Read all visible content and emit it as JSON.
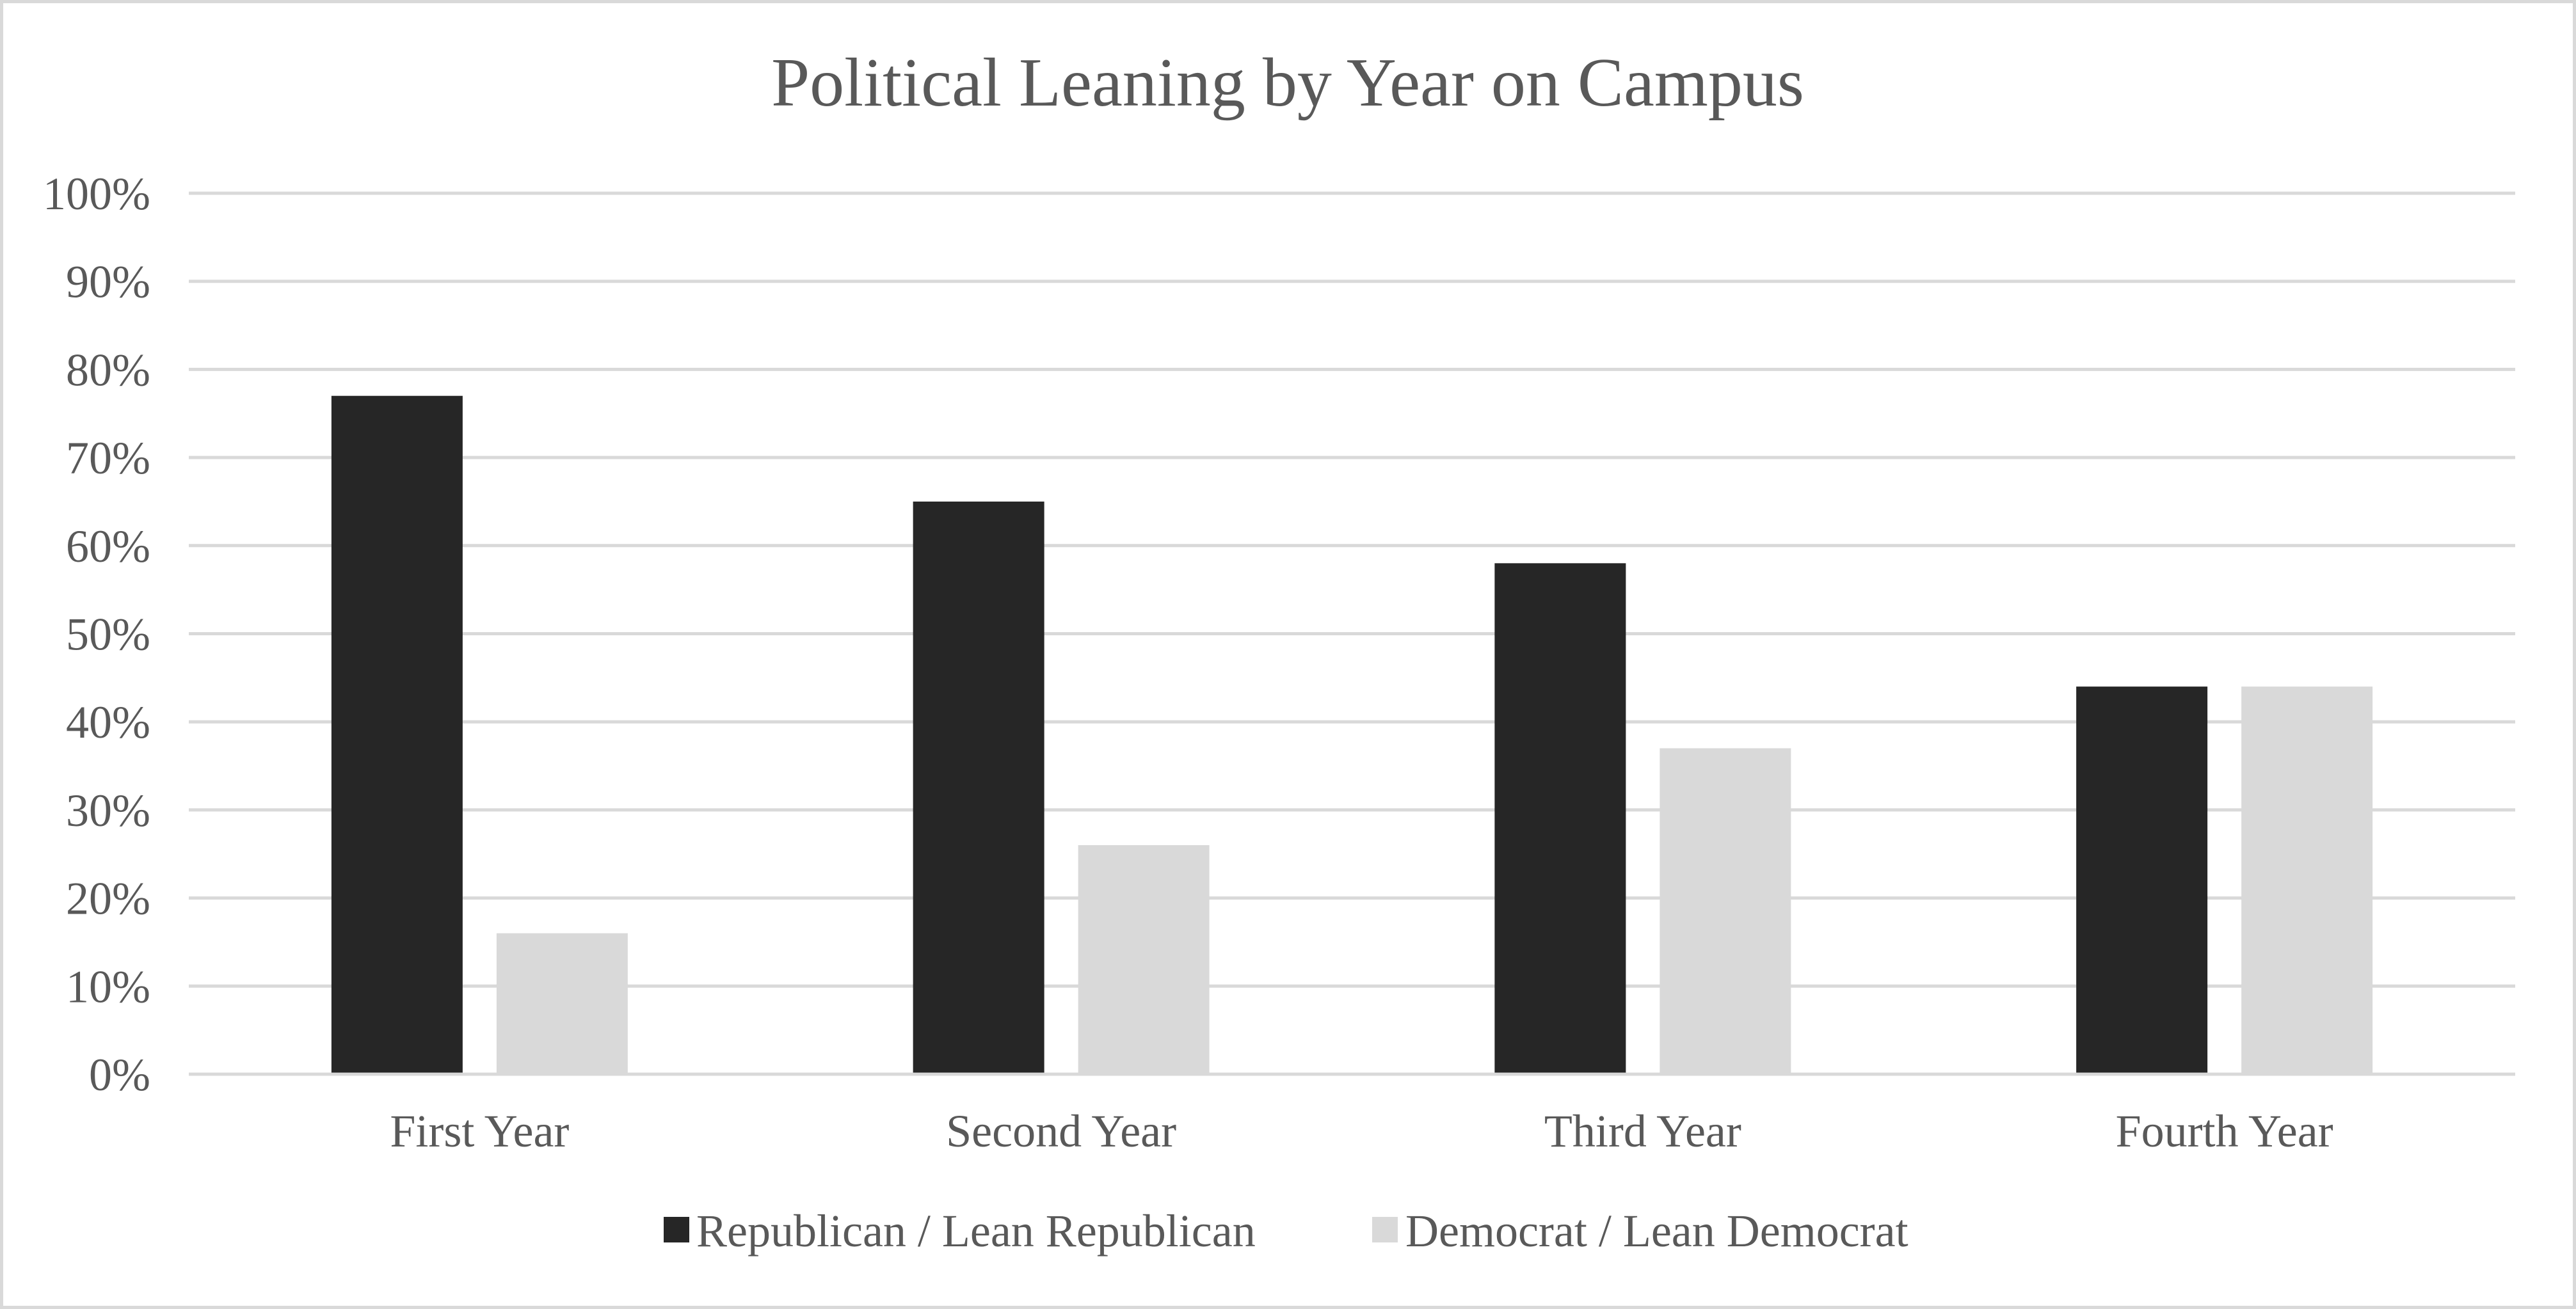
{
  "chart_data": {
    "type": "bar",
    "title": "Political Leaning by Year on Campus",
    "xlabel": "",
    "ylabel": "",
    "categories": [
      "First Year",
      "Second Year",
      "Third Year",
      "Fourth Year"
    ],
    "series": [
      {
        "name": "Republican / Lean Republican",
        "values": [
          77,
          65,
          58,
          44
        ],
        "color": "#262626"
      },
      {
        "name": "Democrat / Lean Democrat",
        "values": [
          16,
          26,
          37,
          44
        ],
        "color": "#d9d9d9"
      }
    ],
    "ylim": [
      0,
      100
    ],
    "y_ticks": [
      0,
      10,
      20,
      30,
      40,
      50,
      60,
      70,
      80,
      90,
      100
    ],
    "y_tick_labels": [
      "0%",
      "10%",
      "20%",
      "30%",
      "40%",
      "50%",
      "60%",
      "70%",
      "80%",
      "90%",
      "100%"
    ],
    "grid": true,
    "legend_position": "bottom",
    "text_color": "#595959",
    "gridline_color": "#d9d9d9"
  }
}
